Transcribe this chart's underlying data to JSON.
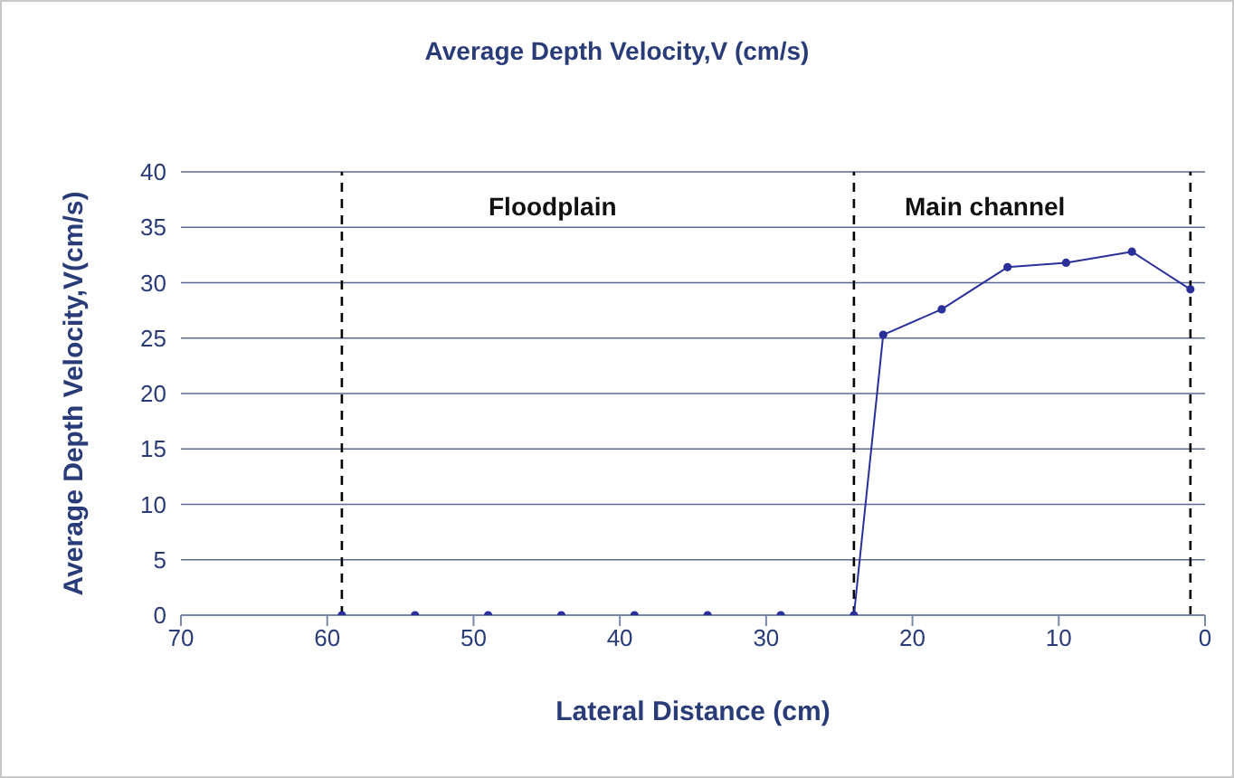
{
  "chart_data": {
    "type": "line",
    "title": "Average Depth Velocity,V (cm/s)",
    "xlabel": "Lateral Distance (cm)",
    "ylabel": "Average Depth Velocity,V(cm/s)",
    "x": [
      59,
      54,
      49,
      44,
      39,
      34,
      29,
      24,
      22,
      18,
      13.5,
      9.5,
      5,
      1
    ],
    "series": [
      {
        "color": "#2b2f9a",
        "values": [
          0,
          0,
          0,
          0,
          0,
          0,
          0,
          0,
          25.3,
          27.6,
          31.4,
          31.8,
          32.8,
          29.4
        ]
      }
    ],
    "xlim": [
      70,
      0
    ],
    "xticks": [
      70,
      60,
      50,
      40,
      30,
      20,
      10,
      0
    ],
    "ylim": [
      0,
      40
    ],
    "yticks": [
      0,
      5,
      10,
      15,
      20,
      25,
      30,
      35,
      40
    ],
    "grid": "y",
    "marker": "circle",
    "line_style": "solid",
    "ref_lines": [
      {
        "axis": "x",
        "value": 59,
        "color": "#000000",
        "line_style": "dashed"
      },
      {
        "axis": "x",
        "value": 24,
        "color": "#000000",
        "line_style": "dashed"
      },
      {
        "axis": "x",
        "value": 1,
        "color": "#000000",
        "line_style": "dashed"
      }
    ],
    "annotations": [
      "Floodplain",
      "Main channel"
    ]
  }
}
